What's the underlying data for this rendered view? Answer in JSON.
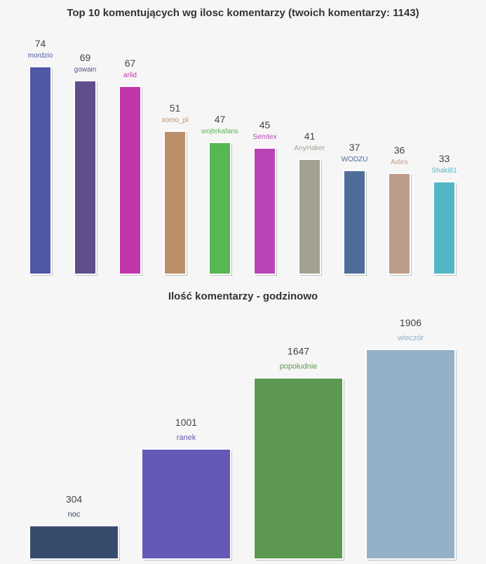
{
  "chart_data": [
    {
      "type": "bar",
      "title": "Top 10 komentujących wg ilosc komentarzy (twoich komentarzy: 1143)",
      "xlabel": "",
      "ylabel": "",
      "categories": [
        "mordzio",
        "gowain",
        "arlid",
        "xomo_pl",
        "wojtekafans",
        "Semtex",
        "AnyHaker",
        "WODZU",
        "Axles",
        "Shaki81"
      ],
      "values": [
        74,
        69,
        67,
        51,
        47,
        45,
        41,
        37,
        36,
        33
      ],
      "colors": [
        "#5057a5",
        "#5f4e8a",
        "#c137a9",
        "#bb8f6a",
        "#57b753",
        "#b844b7",
        "#a3a092",
        "#4f6d99",
        "#be9c8a",
        "#53b6c6"
      ],
      "grid": false,
      "legend": "none"
    },
    {
      "type": "bar",
      "title": "Ilość komentarzy - godzinowo",
      "xlabel": "",
      "ylabel": "",
      "categories": [
        "noc",
        "ranek",
        "popołudnie",
        "wieczór"
      ],
      "values": [
        304,
        1001,
        1647,
        1906
      ],
      "colors": [
        "#374a6c",
        "#6459b4",
        "#5d9950",
        "#93b0c7"
      ],
      "grid": false,
      "legend": "none"
    }
  ]
}
